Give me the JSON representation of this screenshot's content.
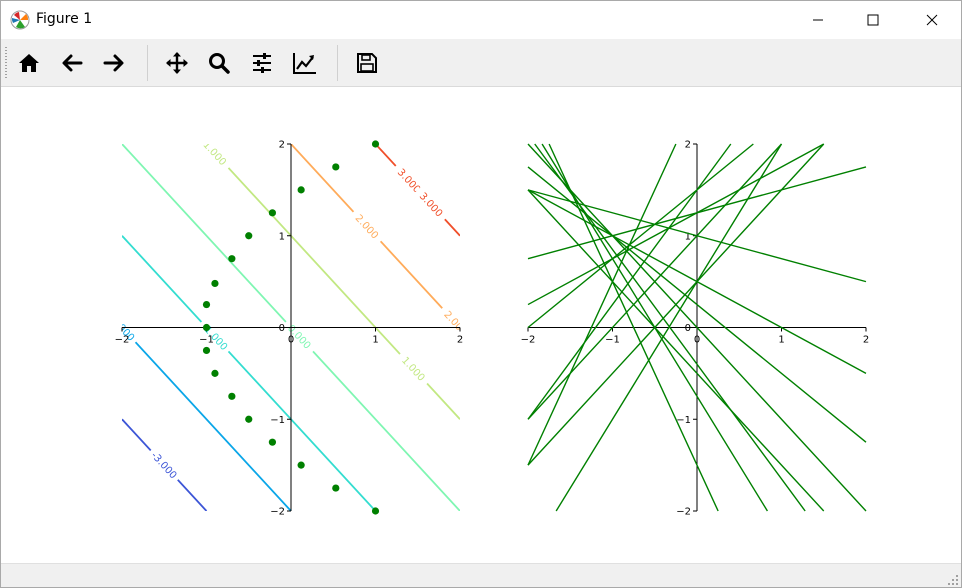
{
  "window": {
    "title": "Figure 1",
    "controls": {
      "minimize_icon": "minimize-icon",
      "maximize_icon": "maximize-icon",
      "close_icon": "close-icon"
    }
  },
  "toolbar": {
    "buttons": [
      {
        "name": "home-button",
        "icon": "home-icon"
      },
      {
        "name": "back-button",
        "icon": "arrow-left-icon"
      },
      {
        "name": "forward-button",
        "icon": "arrow-right-icon"
      },
      {
        "name": "pan-button",
        "icon": "move-icon"
      },
      {
        "name": "zoom-button",
        "icon": "magnifier-icon"
      },
      {
        "name": "subplots-button",
        "icon": "sliders-icon"
      },
      {
        "name": "customize-button",
        "icon": "line-chart-icon"
      },
      {
        "name": "save-button",
        "icon": "floppy-disk-icon"
      }
    ]
  },
  "chart_data": [
    {
      "type": "contour",
      "description_func": "levels are values of x + y",
      "xlim": [
        -2,
        2
      ],
      "ylim": [
        -2,
        2
      ],
      "x_ticks": [
        "−2",
        "−1",
        "0",
        "1",
        "2"
      ],
      "y_ticks": [
        "−2",
        "−1",
        "0",
        "1",
        "2"
      ],
      "axes_style": "spines through origin",
      "levels": [
        {
          "value": -3,
          "label": "-3.000",
          "color": "#3c55d6"
        },
        {
          "value": -2,
          "label": "-2.000",
          "color": "#0aa6e8"
        },
        {
          "value": -1,
          "label": "-1.000",
          "color": "#33ddd0"
        },
        {
          "value": 0,
          "label": "0.000",
          "color": "#7ff6b2"
        },
        {
          "value": 1,
          "label": "1.000",
          "color": "#c2e882"
        },
        {
          "value": 2,
          "label": "2.000",
          "color": "#ffab5a"
        },
        {
          "value": 3,
          "label": "3.000",
          "color": "#f04f2a"
        }
      ],
      "contour_label_texts": [
        "-3.000",
        "-2.000",
        "-1.000",
        "0.000",
        "1.000",
        "1.000",
        "2.000",
        "2.000",
        "3.000",
        "3.000"
      ],
      "points": {
        "color": "#008000",
        "x": [
          -1.0,
          -0.9,
          -0.7,
          -0.5,
          -0.22,
          0.12,
          0.53,
          1.0,
          -1.0,
          -1.0,
          -0.9,
          -0.7,
          -0.5,
          -0.22,
          0.12,
          0.53,
          1.0
        ],
        "y": [
          0.0,
          0.48,
          0.75,
          1.0,
          1.25,
          1.5,
          1.75,
          2.0,
          0.25,
          -0.25,
          -0.5,
          -0.75,
          -1.0,
          -1.25,
          -1.5,
          -1.75,
          -2.0
        ]
      }
    },
    {
      "type": "line",
      "description_func": "lines y = a*x + b",
      "xlim": [
        -2,
        2
      ],
      "ylim": [
        -2,
        2
      ],
      "x_ticks": [
        "−2",
        "−1",
        "0",
        "1",
        "2"
      ],
      "y_ticks": [
        "−2",
        "−1",
        "0",
        "1",
        "2"
      ],
      "axes_style": "spines through origin",
      "line_color": "#008000",
      "lines": [
        {
          "slope": 0.25,
          "intercept": 1.25
        },
        {
          "slope": 0.5,
          "intercept": 1.25
        },
        {
          "slope": 0.75,
          "intercept": 1.5
        },
        {
          "slope": 1.0,
          "intercept": 1.0
        },
        {
          "slope": 1.0,
          "intercept": 0.5
        },
        {
          "slope": 1.25,
          "intercept": 1.5
        },
        {
          "slope": 1.5,
          "intercept": 0.5
        },
        {
          "slope": 2.0,
          "intercept": 2.5
        },
        {
          "slope": -0.25,
          "intercept": 1.0
        },
        {
          "slope": -0.5,
          "intercept": 0.5
        },
        {
          "slope": -0.75,
          "intercept": 0.25
        },
        {
          "slope": -1.0,
          "intercept": 0.0
        },
        {
          "slope": -1.0,
          "intercept": -0.5
        },
        {
          "slope": -1.25,
          "intercept": -0.4
        },
        {
          "slope": -1.5,
          "intercept": -0.75
        },
        {
          "slope": -2.0,
          "intercept": -1.5
        }
      ]
    }
  ]
}
